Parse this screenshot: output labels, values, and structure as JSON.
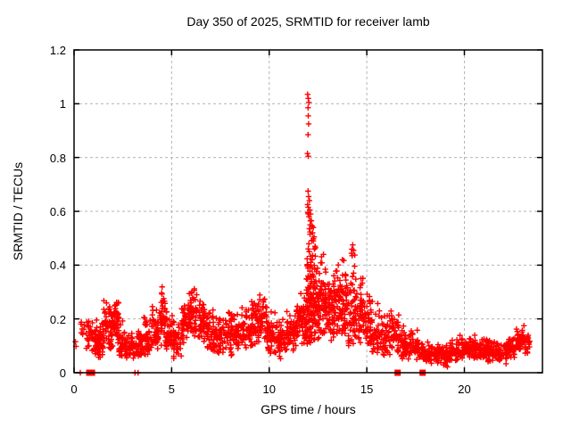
{
  "chart_data": {
    "type": "scatter",
    "title": "Day 350 of 2025, SRMTID for receiver lamb",
    "xlabel": "GPS time / hours",
    "ylabel": "SRMTID / TECUs",
    "xlim": [
      0,
      24
    ],
    "ylim": [
      0,
      1.2
    ],
    "xtick_values": [
      0,
      5,
      10,
      15,
      20
    ],
    "xtick_labels": [
      "0",
      "5",
      "10",
      "15",
      "20"
    ],
    "ytick_values": [
      0,
      0.2,
      0.4,
      0.6,
      0.8,
      1,
      1.2
    ],
    "ytick_labels": [
      "0",
      "0.2",
      "0.4",
      "0.6",
      "0.8",
      "1",
      "1.2"
    ],
    "grid": true,
    "legend": false,
    "marker": "plus",
    "marker_color": "#ff0000",
    "grid_color": "#b3b3b3",
    "border_color": "#000000",
    "series_name": "SRMTID",
    "notable_points": [
      [
        0.07,
        0.115
      ],
      [
        0.1,
        0.098
      ],
      [
        11.97,
        1.035
      ],
      [
        12.0,
        1.02
      ],
      [
        12.03,
        1.005
      ],
      [
        11.99,
        0.985
      ],
      [
        12.0,
        0.955
      ],
      [
        12.02,
        0.925
      ],
      [
        11.99,
        0.885
      ],
      [
        11.96,
        0.815
      ],
      [
        12.0,
        0.805
      ],
      [
        11.99,
        0.675
      ],
      [
        12.02,
        0.655
      ],
      [
        12.06,
        0.64
      ],
      [
        11.97,
        0.625
      ],
      [
        12.0,
        0.615
      ],
      [
        12.08,
        0.605
      ],
      [
        11.98,
        0.595
      ],
      [
        12.12,
        0.59
      ],
      [
        12.04,
        0.58
      ],
      [
        12.16,
        0.565
      ],
      [
        12.1,
        0.55
      ],
      [
        12.2,
        0.545
      ],
      [
        12.06,
        0.535
      ],
      [
        12.22,
        0.52
      ],
      [
        12.3,
        0.505
      ],
      [
        12.26,
        0.49
      ],
      [
        12.35,
        0.47
      ],
      [
        12.0,
        0.46
      ],
      [
        12.05,
        0.45
      ],
      [
        12.78,
        0.44
      ],
      [
        13.75,
        0.42
      ],
      [
        14.28,
        0.475
      ],
      [
        14.32,
        0.455
      ],
      [
        14.25,
        0.435
      ]
    ],
    "zero_value_squares_x": [
      0.78,
      0.92,
      16.58,
      17.86
    ],
    "zero_value_pluses_x": [
      0.32,
      3.12,
      3.28
    ],
    "density_bands": [
      [
        0.3,
        0.6,
        0.13,
        0.2,
        7
      ],
      [
        0.6,
        1.0,
        0.07,
        0.22,
        28
      ],
      [
        1.0,
        1.5,
        0.05,
        0.23,
        65
      ],
      [
        1.5,
        2.0,
        0.08,
        0.28,
        65
      ],
      [
        2.0,
        2.3,
        0.1,
        0.3,
        42
      ],
      [
        2.3,
        2.7,
        0.05,
        0.2,
        42
      ],
      [
        2.7,
        3.1,
        0.04,
        0.16,
        38
      ],
      [
        3.1,
        3.5,
        0.05,
        0.18,
        38
      ],
      [
        3.5,
        3.9,
        0.06,
        0.22,
        42
      ],
      [
        3.9,
        4.3,
        0.08,
        0.26,
        46
      ],
      [
        4.3,
        4.7,
        0.1,
        0.32,
        46
      ],
      [
        4.7,
        5.1,
        0.08,
        0.25,
        42
      ],
      [
        5.1,
        5.5,
        0.05,
        0.2,
        42
      ],
      [
        5.5,
        5.9,
        0.1,
        0.29,
        46
      ],
      [
        5.9,
        6.4,
        0.12,
        0.33,
        55
      ],
      [
        6.4,
        6.8,
        0.1,
        0.29,
        46
      ],
      [
        6.8,
        7.2,
        0.07,
        0.26,
        42
      ],
      [
        7.2,
        7.6,
        0.06,
        0.22,
        42
      ],
      [
        7.6,
        8.1,
        0.06,
        0.25,
        46
      ],
      [
        8.1,
        8.6,
        0.08,
        0.23,
        46
      ],
      [
        8.6,
        9.1,
        0.08,
        0.26,
        46
      ],
      [
        9.1,
        9.5,
        0.1,
        0.3,
        46
      ],
      [
        9.5,
        9.9,
        0.1,
        0.31,
        42
      ],
      [
        9.9,
        10.4,
        0.06,
        0.24,
        46
      ],
      [
        10.4,
        10.9,
        0.05,
        0.2,
        46
      ],
      [
        10.9,
        11.3,
        0.08,
        0.24,
        42
      ],
      [
        11.3,
        11.7,
        0.1,
        0.3,
        42
      ],
      [
        11.7,
        11.9,
        0.1,
        0.32,
        28
      ],
      [
        11.9,
        12.15,
        0.1,
        0.66,
        70
      ],
      [
        12.15,
        12.4,
        0.12,
        0.6,
        58
      ],
      [
        12.4,
        12.65,
        0.1,
        0.45,
        42
      ],
      [
        12.65,
        12.95,
        0.12,
        0.45,
        44
      ],
      [
        12.95,
        13.3,
        0.1,
        0.37,
        46
      ],
      [
        13.3,
        13.65,
        0.12,
        0.42,
        50
      ],
      [
        13.65,
        14.0,
        0.12,
        0.44,
        50
      ],
      [
        14.0,
        14.4,
        0.1,
        0.48,
        48
      ],
      [
        14.4,
        14.8,
        0.1,
        0.4,
        48
      ],
      [
        14.8,
        15.2,
        0.08,
        0.31,
        46
      ],
      [
        15.2,
        15.7,
        0.06,
        0.28,
        46
      ],
      [
        15.7,
        16.2,
        0.05,
        0.24,
        46
      ],
      [
        16.2,
        16.7,
        0.05,
        0.25,
        44
      ],
      [
        16.7,
        17.2,
        0.04,
        0.18,
        44
      ],
      [
        17.2,
        17.7,
        0.04,
        0.16,
        42
      ],
      [
        17.7,
        18.2,
        0.03,
        0.14,
        40
      ],
      [
        18.2,
        18.7,
        0.03,
        0.12,
        40
      ],
      [
        18.7,
        19.2,
        0.02,
        0.12,
        44
      ],
      [
        19.2,
        19.7,
        0.04,
        0.13,
        44
      ],
      [
        19.7,
        20.2,
        0.05,
        0.14,
        44
      ],
      [
        20.2,
        20.7,
        0.05,
        0.15,
        44
      ],
      [
        20.7,
        21.2,
        0.05,
        0.15,
        44
      ],
      [
        21.2,
        21.7,
        0.04,
        0.13,
        44
      ],
      [
        21.7,
        22.2,
        0.03,
        0.12,
        44
      ],
      [
        22.2,
        22.6,
        0.05,
        0.15,
        38
      ],
      [
        22.6,
        23.1,
        0.08,
        0.19,
        46
      ],
      [
        23.1,
        23.35,
        0.07,
        0.15,
        18
      ]
    ]
  }
}
